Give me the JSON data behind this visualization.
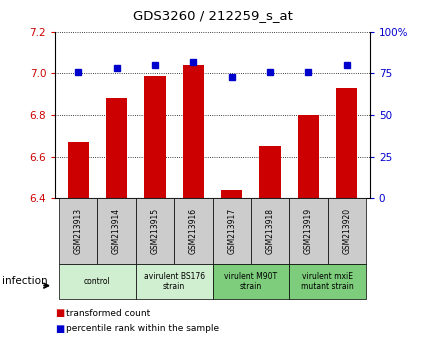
{
  "title": "GDS3260 / 212259_s_at",
  "samples": [
    "GSM213913",
    "GSM213914",
    "GSM213915",
    "GSM213916",
    "GSM213917",
    "GSM213918",
    "GSM213919",
    "GSM213920"
  ],
  "bar_values": [
    6.67,
    6.88,
    6.99,
    7.04,
    6.44,
    6.65,
    6.8,
    6.93
  ],
  "dot_values": [
    76,
    78,
    80,
    82,
    73,
    76,
    76,
    80
  ],
  "ylim_left": [
    6.4,
    7.2
  ],
  "ylim_right": [
    0,
    100
  ],
  "yticks_left": [
    6.4,
    6.6,
    6.8,
    7.0,
    7.2
  ],
  "yticks_right": [
    0,
    25,
    50,
    75,
    100
  ],
  "bar_color": "#cc0000",
  "dot_color": "#0000cc",
  "bg_plot": "#ffffff",
  "bg_samples": "#cccccc",
  "group_colors": [
    "#d0eed0",
    "#d0eed0",
    "#7dcd7d",
    "#7dcd7d"
  ],
  "group_labels": [
    "control",
    "avirulent BS176\nstrain",
    "virulent M90T\nstrain",
    "virulent mxiE\nmutant strain"
  ],
  "group_ranges": [
    [
      0,
      2
    ],
    [
      2,
      4
    ],
    [
      4,
      6
    ],
    [
      6,
      8
    ]
  ],
  "infection_label": "infection",
  "legend_items": [
    {
      "color": "#cc0000",
      "label": "transformed count"
    },
    {
      "color": "#0000cc",
      "label": "percentile rank within the sample"
    }
  ]
}
